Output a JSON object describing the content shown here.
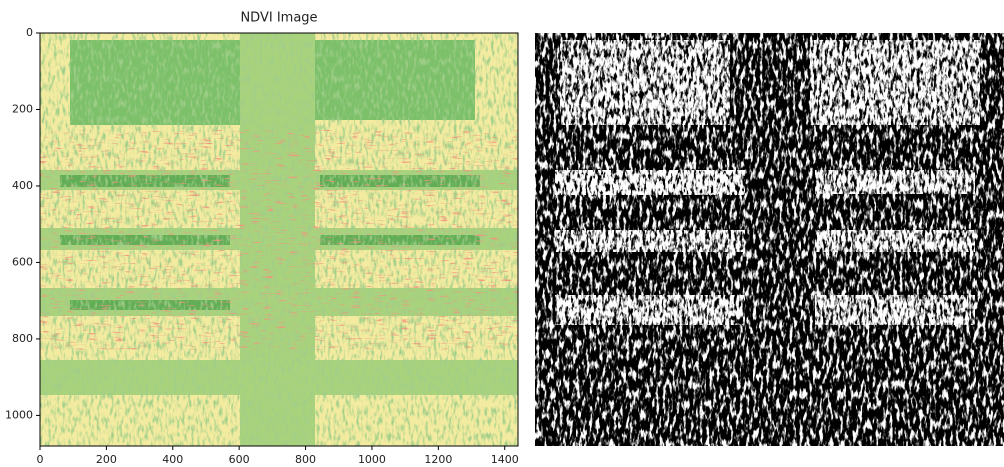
{
  "chart_data": {
    "type": "image",
    "title": "NDVI Image",
    "xlim": [
      0,
      1440
    ],
    "ylim": [
      1080,
      0
    ],
    "xticks": [
      0,
      200,
      400,
      600,
      800,
      1000,
      1200,
      1400
    ],
    "yticks": [
      0,
      200,
      400,
      600,
      800,
      1000
    ]
  }
}
